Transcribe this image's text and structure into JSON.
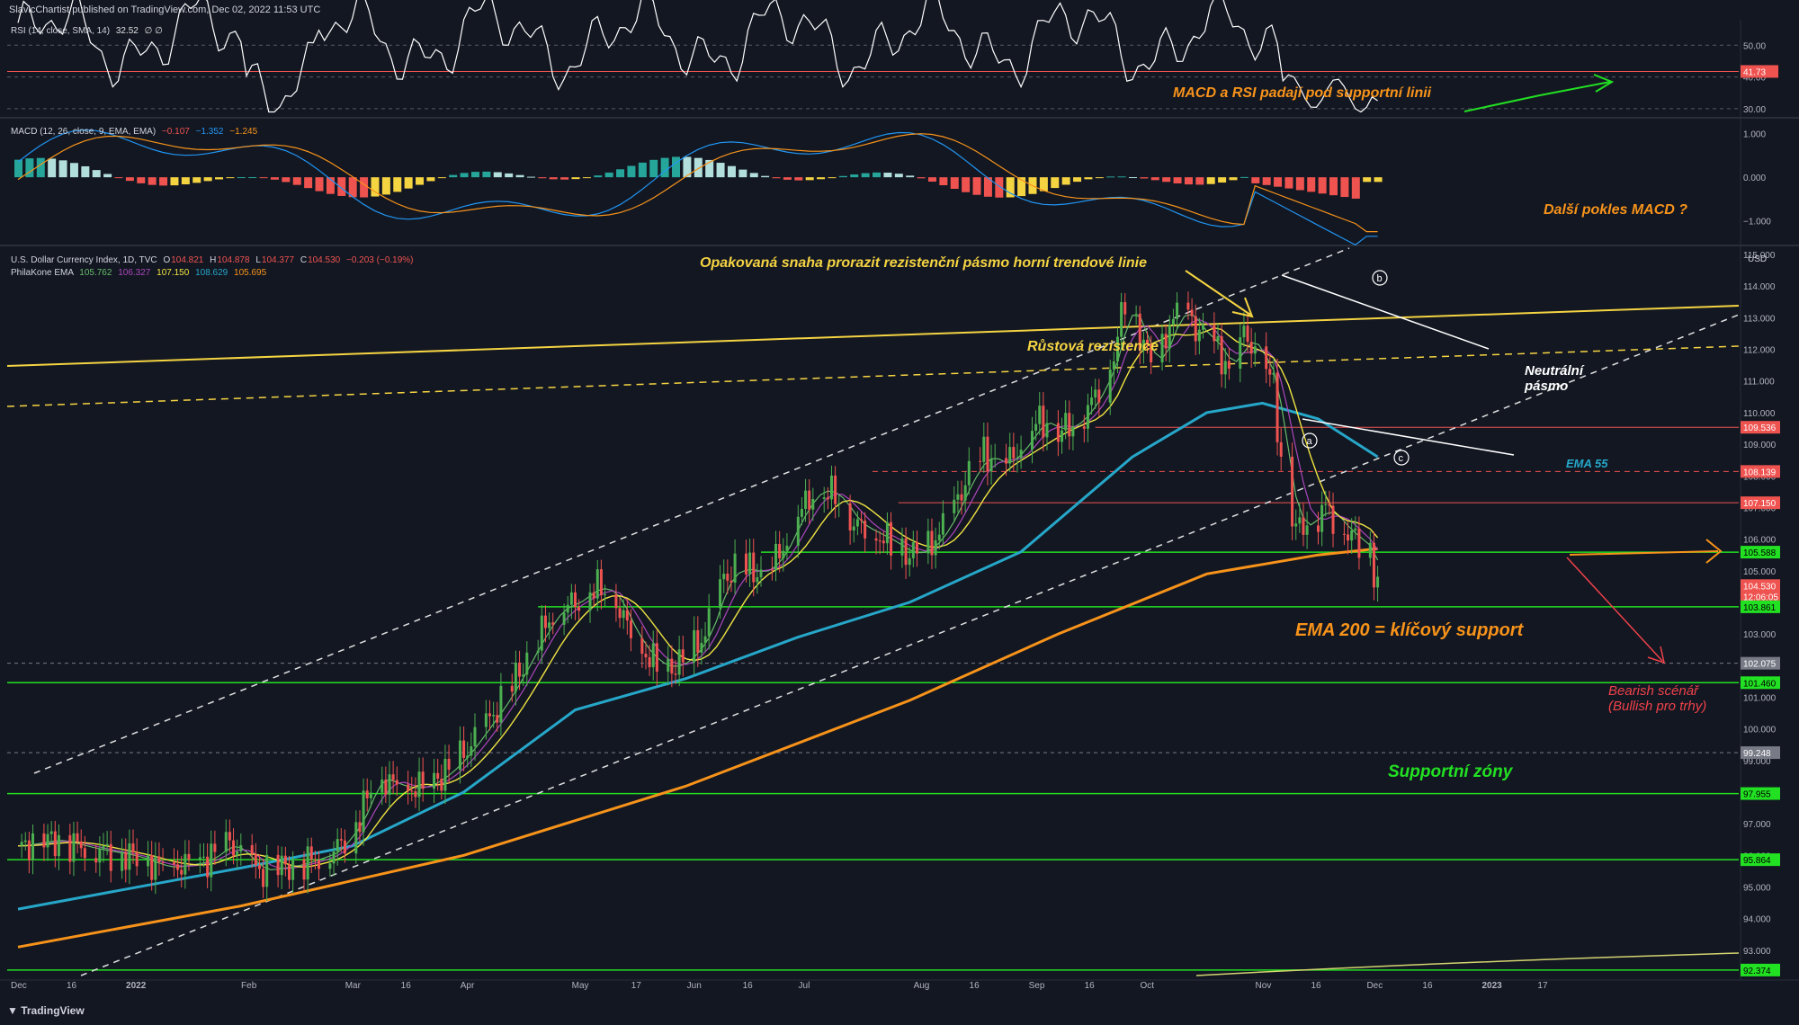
{
  "header": {
    "published_line": "SlavicChartist published on TradingView.com, Dec 02, 2022 11:53 UTC",
    "rsi_title": "RSI (14, close, SMA, 14)",
    "rsi_value": "32.52",
    "rsi_extra": "∅ ∅",
    "macd_title": "MACD (12, 26, close, 9, EMA, EMA)",
    "macd_v1": "−0.107",
    "macd_v2": "−1.352",
    "macd_v3": "−1.245",
    "symbol_title": "U.S. Dollar Currency Index, 1D, TVC",
    "ohlc": {
      "o_label": "O",
      "o": "104.821",
      "h_label": "H",
      "h": "104.878",
      "l_label": "L",
      "l": "104.377",
      "c_label": "C",
      "c": "104.530",
      "chg": "−0.203 (−0.19%)"
    },
    "ema_title": "PhilaKone EMA",
    "ema_values": [
      "105.762",
      "106.327",
      "107.150",
      "108.629",
      "105.695"
    ],
    "currency": "USD",
    "footer_logo": "TradingView"
  },
  "colors": {
    "background": "#131722",
    "up": "#26a69a",
    "up_bright": "#4caf50",
    "down": "#ef5350",
    "ema_green": "#66bb6a",
    "ema_purple": "#ab47bc",
    "ema_yellow": "#f0e442",
    "ema55": "#26a7c9",
    "ema200": "#f7931a",
    "support_green": "#22e022",
    "res_red": "#ef5350",
    "annotation_orange": "#f7931a",
    "annotation_yellow": "#f5d442",
    "annotation_red": "#f0424a",
    "annotation_green": "#22e022"
  },
  "annotations": {
    "rsi_note": "MACD a RSI padají pod supportní linii",
    "macd_note": "Další pokles MACD ?",
    "upper_trend": "Opakovaná snaha prorazit rezistenční pásmo horní trendové linie",
    "growth_res": "Růstová rezistence",
    "neutral": [
      "Neutrální",
      "pásmo"
    ],
    "ema55": "EMA 55",
    "ema200": "EMA 200 = klíčový support",
    "bearish": [
      "Bearish scénář",
      "(Bullish pro trhy)"
    ],
    "support_zones": "Supportní zóny",
    "wave_labels": [
      "a",
      "b",
      "c"
    ]
  },
  "chart_data": [
    {
      "type": "line",
      "name": "RSI",
      "ylim": [
        28,
        58
      ],
      "y_ticks": [
        "50.00",
        "40.00",
        "30.00"
      ],
      "y_tick_values": [
        50,
        40,
        30
      ],
      "levels": [
        {
          "value": 41.73,
          "label": "41.73",
          "color": "#ef5350"
        }
      ],
      "last_value": 32.52
    },
    {
      "type": "bar",
      "name": "MACD",
      "ylim": [
        -1.5,
        1.3
      ],
      "y_ticks": [
        "1.000",
        "0.000",
        "−1.000"
      ],
      "y_tick_values": [
        1,
        0,
        -1
      ],
      "last": {
        "macd": -1.352,
        "signal": -1.245,
        "hist": -0.107
      }
    },
    {
      "type": "candlestick",
      "name": "U.S. Dollar Currency Index, 1D",
      "x": [
        "Dec",
        "16",
        "2022",
        "Feb",
        "Mar",
        "16",
        "Apr",
        "May",
        "17",
        "Jun",
        "16",
        "Jul",
        "Aug",
        "16",
        "Sep",
        "16",
        "Oct",
        "Nov",
        "16",
        "Dec",
        "16",
        "2023",
        "17"
      ],
      "x_positions_days": [
        0,
        15,
        31,
        62,
        90,
        105,
        121,
        151,
        167,
        182,
        197,
        212,
        243,
        258,
        274,
        289,
        304,
        335,
        350,
        365,
        380,
        396,
        411
      ],
      "ylim": [
        92.2,
        115.2
      ],
      "y_ticks": [
        "115.000",
        "114.000",
        "113.000",
        "112.000",
        "111.000",
        "110.000",
        "109.000",
        "108.000",
        "107.000",
        "106.000",
        "105.000",
        "104.000",
        "103.000",
        "102.000",
        "101.000",
        "100.000",
        "99.000",
        "98.000",
        "97.000",
        "96.000",
        "95.000",
        "94.000",
        "93.000"
      ],
      "y_tick_values": [
        115,
        114,
        113,
        112,
        111,
        110,
        109,
        108,
        107,
        106,
        105,
        104,
        103,
        102,
        101,
        100,
        99,
        98,
        97,
        96,
        95,
        94,
        93
      ],
      "price_tags": [
        {
          "value": 109.536,
          "label": "109.536",
          "color": "#ef5350"
        },
        {
          "value": 108.139,
          "label": "108.139",
          "color": "#ef5350"
        },
        {
          "value": 107.15,
          "label": "107.150",
          "color": "#ef5350"
        },
        {
          "value": 105.588,
          "label": "105.588",
          "color": "#22e022"
        },
        {
          "value": 104.53,
          "label": "104.530",
          "color": "#ef5350",
          "countdown": "12:06:05"
        },
        {
          "value": 103.861,
          "label": "103.861",
          "color": "#22e022"
        },
        {
          "value": 102.075,
          "label": "102.075",
          "color": "#787b86"
        },
        {
          "value": 101.46,
          "label": "101.460",
          "color": "#22e022"
        },
        {
          "value": 99.248,
          "label": "99.248",
          "color": "#787b86"
        },
        {
          "value": 97.955,
          "label": "97.955",
          "color": "#22e022"
        },
        {
          "value": 95.864,
          "label": "95.864",
          "color": "#22e022"
        },
        {
          "value": 92.374,
          "label": "92.374",
          "color": "#22e022"
        }
      ],
      "close_path_days": [
        0,
        10,
        20,
        30,
        40,
        50,
        57,
        65,
        75,
        85,
        92,
        96,
        100,
        105,
        110,
        115,
        120,
        125,
        130,
        135,
        140,
        145,
        150,
        155,
        160,
        165,
        170,
        175,
        180,
        185,
        190,
        195,
        200,
        205,
        210,
        215,
        220,
        225,
        230,
        235,
        240,
        245,
        250,
        255,
        260,
        265,
        270,
        275,
        280,
        285,
        290,
        295,
        298,
        302,
        306,
        310,
        314,
        318,
        322,
        326,
        330,
        334,
        338,
        340,
        344,
        348,
        352,
        356,
        360,
        364,
        366
      ],
      "close_path_values": [
        96.3,
        96.5,
        96.2,
        96.0,
        95.6,
        95.8,
        96.4,
        95.5,
        95.7,
        96.1,
        97.2,
        98.5,
        98.3,
        98.1,
        98.2,
        98.6,
        99.2,
        100.0,
        100.8,
        101.8,
        102.9,
        103.8,
        104.0,
        104.5,
        104.3,
        103.0,
        102.2,
        101.9,
        102.2,
        103.0,
        104.8,
        105.1,
        104.9,
        105.5,
        106.8,
        107.6,
        107.4,
        106.5,
        106.2,
        105.9,
        105.5,
        105.7,
        106.5,
        107.8,
        108.7,
        108.3,
        108.9,
        109.8,
        109.4,
        109.7,
        110.5,
        111.8,
        113.6,
        112.5,
        111.3,
        112.8,
        113.3,
        112.5,
        112.2,
        111.3,
        112.5,
        111.8,
        110.9,
        108.4,
        106.3,
        106.6,
        107.0,
        106.4,
        106.0,
        105.6,
        104.53
      ],
      "ema200_path_days": [
        0,
        60,
        120,
        180,
        240,
        280,
        320,
        350,
        366
      ],
      "ema200_path_values": [
        93.1,
        94.4,
        96.0,
        98.2,
        100.9,
        103.0,
        104.9,
        105.5,
        105.7
      ],
      "ema55_path_days": [
        0,
        60,
        90,
        120,
        150,
        180,
        210,
        240,
        270,
        300,
        320,
        335,
        350,
        366
      ],
      "ema55_path_values": [
        94.3,
        95.6,
        96.3,
        98.0,
        100.6,
        101.6,
        102.9,
        104.0,
        105.6,
        108.6,
        110.0,
        110.3,
        109.8,
        108.6
      ],
      "last_close": 104.53
    }
  ]
}
